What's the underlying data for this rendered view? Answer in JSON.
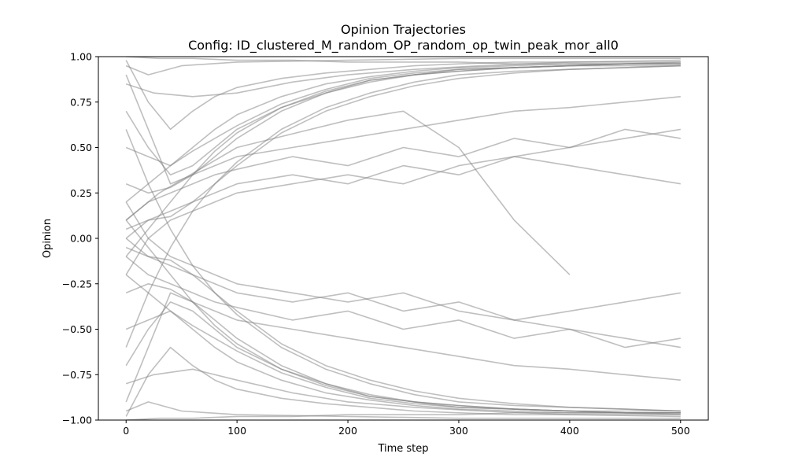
{
  "chart_data": {
    "type": "line",
    "title": "Opinion Trajectories",
    "subtitle": "Config: ID_clustered_M_random_OP_random_op_twin_peak_mor_all0",
    "xlabel": "Time step",
    "ylabel": "Opinion",
    "xlim": [
      -25,
      525
    ],
    "ylim": [
      -1.0,
      1.0
    ],
    "x_ticks": [
      0,
      100,
      200,
      300,
      400,
      500
    ],
    "x_tick_labels": [
      "0",
      "100",
      "200",
      "300",
      "400",
      "500"
    ],
    "y_ticks": [
      -1.0,
      -0.75,
      -0.5,
      -0.25,
      0.0,
      0.25,
      0.5,
      0.75,
      1.0
    ],
    "y_tick_labels": [
      "−1.00",
      "−0.75",
      "−0.50",
      "−0.25",
      "0.00",
      "0.25",
      "0.50",
      "0.75",
      "1.00"
    ],
    "grid": false,
    "series_color": "#808080",
    "series_opacity": 0.5,
    "series": [
      {
        "x": [
          0,
          20,
          40,
          60,
          80,
          100,
          140,
          180,
          220,
          260,
          300,
          350,
          400,
          450,
          500
        ],
        "values": [
          0.98,
          0.75,
          0.6,
          0.7,
          0.78,
          0.83,
          0.88,
          0.91,
          0.93,
          0.95,
          0.96,
          0.97,
          0.97,
          0.97,
          0.97
        ]
      },
      {
        "x": [
          0,
          20,
          40,
          60,
          80,
          100,
          140,
          180,
          220,
          260,
          300,
          350,
          400,
          450,
          500
        ],
        "values": [
          0.2,
          0.3,
          0.4,
          0.5,
          0.6,
          0.68,
          0.78,
          0.85,
          0.89,
          0.92,
          0.94,
          0.95,
          0.96,
          0.96,
          0.96
        ]
      },
      {
        "x": [
          0,
          20,
          40,
          60,
          80,
          100,
          140,
          180,
          220,
          260,
          300,
          350,
          400,
          450,
          500
        ],
        "values": [
          -0.1,
          0.05,
          0.2,
          0.35,
          0.48,
          0.58,
          0.72,
          0.81,
          0.87,
          0.9,
          0.92,
          0.94,
          0.95,
          0.95,
          0.95
        ]
      },
      {
        "x": [
          0,
          20,
          40,
          60,
          80,
          100,
          140,
          180,
          220,
          260,
          300,
          350,
          400,
          450,
          500
        ],
        "values": [
          0.5,
          0.45,
          0.4,
          0.48,
          0.55,
          0.62,
          0.74,
          0.82,
          0.88,
          0.91,
          0.93,
          0.94,
          0.95,
          0.96,
          0.96
        ]
      },
      {
        "x": [
          0,
          20,
          40,
          60,
          80,
          100,
          140,
          180,
          220,
          260,
          300,
          350,
          400,
          450,
          500
        ],
        "values": [
          -0.6,
          -0.3,
          -0.05,
          0.15,
          0.3,
          0.42,
          0.6,
          0.72,
          0.8,
          0.86,
          0.9,
          0.92,
          0.93,
          0.94,
          0.95
        ]
      },
      {
        "x": [
          0,
          20,
          40,
          60,
          80,
          100,
          140,
          180,
          220,
          260,
          300,
          350,
          400,
          450,
          500
        ],
        "values": [
          0.9,
          0.6,
          0.3,
          0.35,
          0.45,
          0.55,
          0.7,
          0.8,
          0.86,
          0.9,
          0.92,
          0.94,
          0.95,
          0.96,
          0.96
        ]
      },
      {
        "x": [
          0,
          20,
          40,
          60,
          80,
          100,
          140,
          180,
          220,
          260,
          300,
          350,
          400,
          450,
          500
        ],
        "values": [
          0.0,
          0.1,
          0.12,
          0.2,
          0.3,
          0.4,
          0.58,
          0.7,
          0.78,
          0.84,
          0.88,
          0.91,
          0.93,
          0.94,
          0.95
        ]
      },
      {
        "x": [
          0,
          20,
          40,
          60,
          80,
          100,
          140,
          180,
          220,
          260,
          300,
          350,
          400,
          450,
          500
        ],
        "values": [
          0.7,
          0.5,
          0.35,
          0.4,
          0.5,
          0.6,
          0.72,
          0.8,
          0.87,
          0.9,
          0.93,
          0.94,
          0.95,
          0.96,
          0.97
        ]
      },
      {
        "x": [
          0,
          20,
          40,
          60,
          80,
          100,
          150,
          200,
          250,
          300,
          350,
          400,
          450,
          500
        ],
        "values": [
          0.1,
          0.2,
          0.25,
          0.3,
          0.35,
          0.38,
          0.45,
          0.4,
          0.5,
          0.45,
          0.55,
          0.5,
          0.6,
          0.55
        ]
      },
      {
        "x": [
          0,
          20,
          40,
          60,
          80,
          100,
          150,
          200,
          250,
          300,
          350,
          400,
          450,
          500
        ],
        "values": [
          0.3,
          0.25,
          0.28,
          0.35,
          0.4,
          0.45,
          0.5,
          0.55,
          0.6,
          0.65,
          0.7,
          0.72,
          0.75,
          0.78
        ]
      },
      {
        "x": [
          0,
          20,
          40,
          60,
          80,
          100,
          150,
          200,
          250,
          300,
          350,
          400,
          450,
          500
        ],
        "values": [
          0.05,
          0.1,
          0.15,
          0.2,
          0.25,
          0.3,
          0.35,
          0.3,
          0.4,
          0.35,
          0.45,
          0.4,
          0.35,
          0.3
        ]
      },
      {
        "x": [
          0,
          20,
          40,
          60,
          80,
          100,
          150,
          200,
          250,
          300,
          350,
          400,
          450,
          500
        ],
        "values": [
          -0.2,
          0.0,
          0.1,
          0.15,
          0.2,
          0.25,
          0.3,
          0.35,
          0.3,
          0.4,
          0.45,
          0.5,
          0.55,
          0.6
        ]
      },
      {
        "x": [
          0,
          30,
          60,
          100,
          150,
          200,
          250,
          300,
          350,
          400,
          450,
          500
        ],
        "values": [
          1.0,
          0.99,
          0.99,
          0.98,
          0.98,
          0.97,
          0.97,
          0.97,
          0.96,
          0.96,
          0.96,
          0.96
        ]
      },
      {
        "x": [
          0,
          20,
          40,
          60,
          80,
          100,
          140,
          180,
          220,
          260,
          300,
          350,
          400,
          450,
          500
        ],
        "values": [
          -0.98,
          -0.75,
          -0.6,
          -0.7,
          -0.78,
          -0.83,
          -0.88,
          -0.91,
          -0.93,
          -0.95,
          -0.96,
          -0.97,
          -0.97,
          -0.97,
          -0.97
        ]
      },
      {
        "x": [
          0,
          20,
          40,
          60,
          80,
          100,
          140,
          180,
          220,
          260,
          300,
          350,
          400,
          450,
          500
        ],
        "values": [
          -0.2,
          -0.3,
          -0.4,
          -0.5,
          -0.6,
          -0.68,
          -0.78,
          -0.85,
          -0.89,
          -0.92,
          -0.94,
          -0.95,
          -0.96,
          -0.96,
          -0.96
        ]
      },
      {
        "x": [
          0,
          20,
          40,
          60,
          80,
          100,
          140,
          180,
          220,
          260,
          300,
          350,
          400,
          450,
          500
        ],
        "values": [
          0.1,
          -0.05,
          -0.2,
          -0.35,
          -0.48,
          -0.58,
          -0.72,
          -0.81,
          -0.87,
          -0.9,
          -0.92,
          -0.94,
          -0.95,
          -0.95,
          -0.95
        ]
      },
      {
        "x": [
          0,
          20,
          40,
          60,
          80,
          100,
          140,
          180,
          220,
          260,
          300,
          350,
          400,
          450,
          500
        ],
        "values": [
          -0.5,
          -0.45,
          -0.4,
          -0.48,
          -0.55,
          -0.62,
          -0.74,
          -0.82,
          -0.88,
          -0.91,
          -0.93,
          -0.94,
          -0.95,
          -0.96,
          -0.96
        ]
      },
      {
        "x": [
          0,
          20,
          40,
          60,
          80,
          100,
          140,
          180,
          220,
          260,
          300,
          350,
          400,
          450,
          500
        ],
        "values": [
          0.6,
          0.3,
          0.05,
          -0.15,
          -0.3,
          -0.42,
          -0.6,
          -0.72,
          -0.8,
          -0.86,
          -0.9,
          -0.92,
          -0.93,
          -0.94,
          -0.95
        ]
      },
      {
        "x": [
          0,
          20,
          40,
          60,
          80,
          100,
          140,
          180,
          220,
          260,
          300,
          350,
          400,
          450,
          500
        ],
        "values": [
          -0.9,
          -0.6,
          -0.3,
          -0.35,
          -0.45,
          -0.55,
          -0.7,
          -0.8,
          -0.86,
          -0.9,
          -0.92,
          -0.94,
          -0.95,
          -0.96,
          -0.96
        ]
      },
      {
        "x": [
          0,
          20,
          40,
          60,
          80,
          100,
          140,
          180,
          220,
          260,
          300,
          350,
          400,
          450,
          500
        ],
        "values": [
          0.0,
          -0.1,
          -0.12,
          -0.2,
          -0.3,
          -0.4,
          -0.58,
          -0.7,
          -0.78,
          -0.84,
          -0.88,
          -0.91,
          -0.93,
          -0.94,
          -0.95
        ]
      },
      {
        "x": [
          0,
          20,
          40,
          60,
          80,
          100,
          140,
          180,
          220,
          260,
          300,
          350,
          400,
          450,
          500
        ],
        "values": [
          -0.7,
          -0.5,
          -0.35,
          -0.4,
          -0.5,
          -0.6,
          -0.72,
          -0.8,
          -0.87,
          -0.9,
          -0.93,
          -0.94,
          -0.95,
          -0.96,
          -0.97
        ]
      },
      {
        "x": [
          0,
          20,
          40,
          60,
          80,
          100,
          150,
          200,
          250,
          300,
          350,
          400,
          450,
          500
        ],
        "values": [
          -0.1,
          -0.2,
          -0.25,
          -0.3,
          -0.35,
          -0.38,
          -0.45,
          -0.4,
          -0.5,
          -0.45,
          -0.55,
          -0.5,
          -0.6,
          -0.55
        ]
      },
      {
        "x": [
          0,
          20,
          40,
          60,
          80,
          100,
          150,
          200,
          250,
          300,
          350,
          400,
          450,
          500
        ],
        "values": [
          -0.3,
          -0.25,
          -0.28,
          -0.35,
          -0.4,
          -0.45,
          -0.5,
          -0.55,
          -0.6,
          -0.65,
          -0.7,
          -0.72,
          -0.75,
          -0.78
        ]
      },
      {
        "x": [
          0,
          20,
          40,
          60,
          80,
          100,
          150,
          200,
          250,
          300,
          350,
          400,
          450,
          500
        ],
        "values": [
          -0.05,
          -0.1,
          -0.15,
          -0.2,
          -0.25,
          -0.3,
          -0.35,
          -0.3,
          -0.4,
          -0.35,
          -0.45,
          -0.4,
          -0.35,
          -0.3
        ]
      },
      {
        "x": [
          0,
          20,
          40,
          60,
          80,
          100,
          150,
          200,
          250,
          300,
          350,
          400,
          450,
          500
        ],
        "values": [
          0.2,
          0.0,
          -0.1,
          -0.15,
          -0.2,
          -0.25,
          -0.3,
          -0.35,
          -0.3,
          -0.4,
          -0.45,
          -0.5,
          -0.55,
          -0.6
        ]
      },
      {
        "x": [
          0,
          30,
          60,
          100,
          150,
          200,
          250,
          300,
          350,
          400,
          450,
          500
        ],
        "values": [
          -1.0,
          -0.99,
          -0.99,
          -0.98,
          -0.98,
          -0.97,
          -0.97,
          -0.97,
          -0.96,
          -0.96,
          -0.96,
          -0.96
        ]
      },
      {
        "x": [
          0,
          20,
          50,
          100,
          200,
          300,
          400,
          500
        ],
        "values": [
          0.95,
          0.9,
          0.95,
          0.97,
          0.98,
          0.99,
          0.99,
          0.99
        ]
      },
      {
        "x": [
          0,
          20,
          50,
          100,
          200,
          300,
          400,
          500
        ],
        "values": [
          -0.95,
          -0.9,
          -0.95,
          -0.97,
          -0.98,
          -0.99,
          -0.99,
          -0.99
        ]
      },
      {
        "x": [
          0,
          30,
          100,
          200,
          250,
          300,
          350,
          400
        ],
        "values": [
          0.1,
          0.25,
          0.5,
          0.65,
          0.7,
          0.5,
          0.1,
          -0.2
        ]
      },
      {
        "x": [
          0,
          25,
          60,
          100,
          150,
          200,
          260,
          320,
          400,
          500
        ],
        "values": [
          -0.8,
          -0.75,
          -0.72,
          -0.78,
          -0.85,
          -0.9,
          -0.93,
          -0.95,
          -0.97,
          -0.98
        ]
      },
      {
        "x": [
          0,
          25,
          60,
          100,
          150,
          200,
          260,
          320,
          400,
          500
        ],
        "values": [
          0.85,
          0.8,
          0.78,
          0.8,
          0.86,
          0.9,
          0.93,
          0.95,
          0.97,
          0.98
        ]
      }
    ]
  }
}
